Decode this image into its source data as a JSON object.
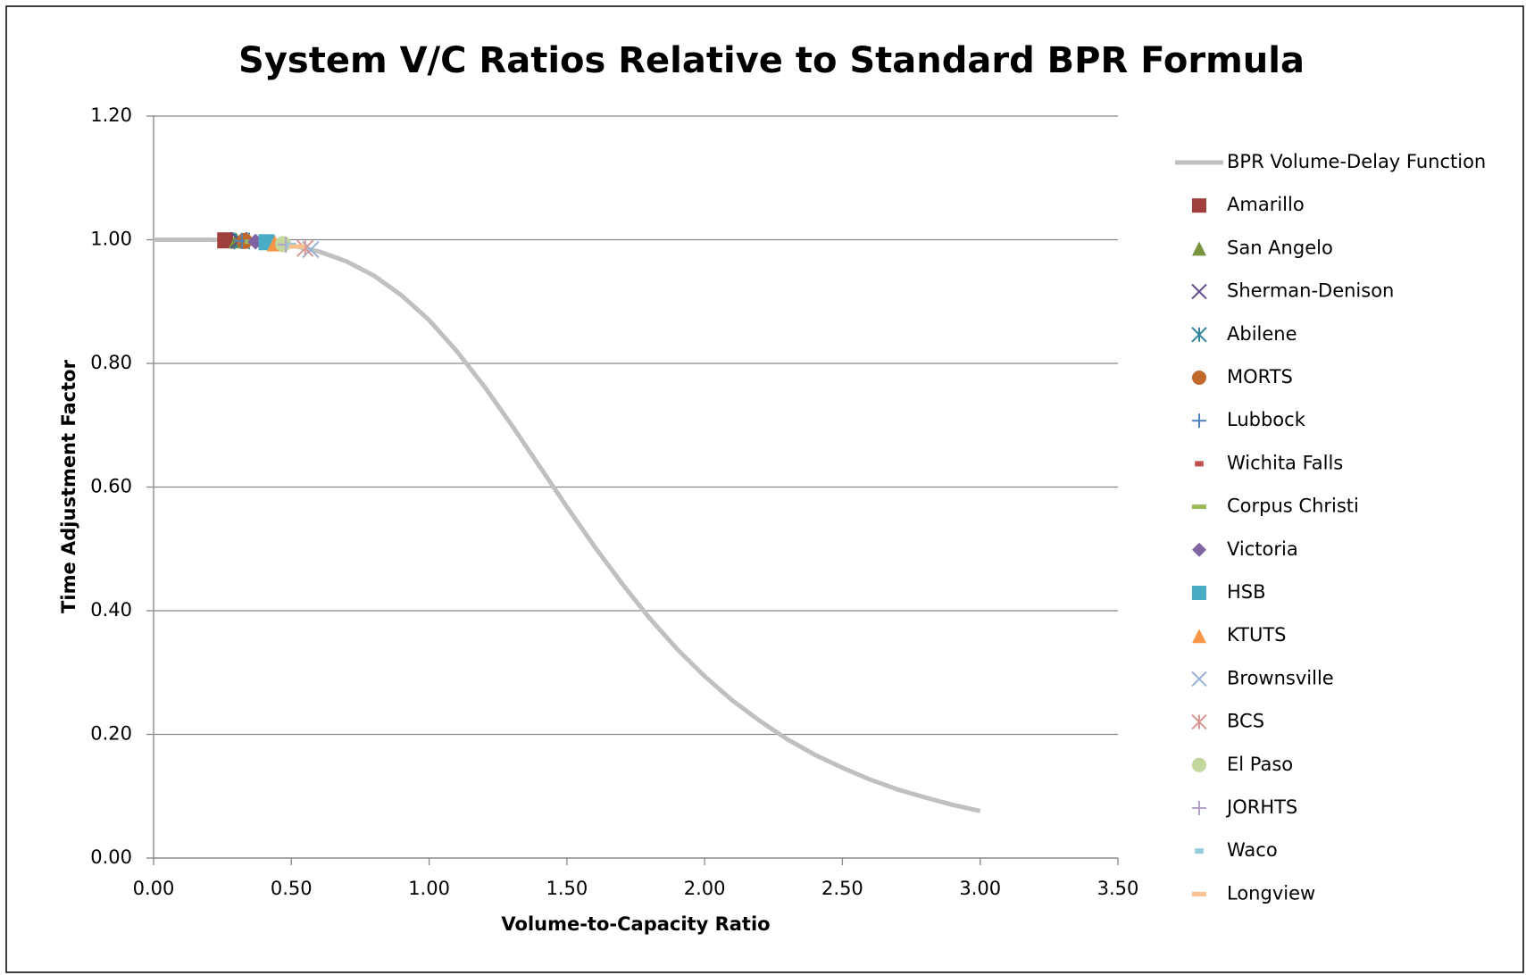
{
  "chart_data": {
    "type": "scatter",
    "title": "System V/C Ratios Relative to Standard BPR Formula",
    "xlabel": "Volume-to-Capacity Ratio",
    "ylabel": "Time Adjustment Factor",
    "xlim": [
      0,
      3.5
    ],
    "ylim": [
      0,
      1.2
    ],
    "xticks": [
      {
        "value": 0,
        "label": "0.00"
      },
      {
        "value": 0.5,
        "label": "0.50"
      },
      {
        "value": 1,
        "label": "1.00"
      },
      {
        "value": 1.5,
        "label": "1.50"
      },
      {
        "value": 2,
        "label": "2.00"
      },
      {
        "value": 2.5,
        "label": "2.50"
      },
      {
        "value": 3,
        "label": "3.00"
      },
      {
        "value": 3.5,
        "label": "3.50"
      }
    ],
    "yticks": [
      {
        "value": 0,
        "label": "0.00"
      },
      {
        "value": 0.2,
        "label": "0.20"
      },
      {
        "value": 0.4,
        "label": "0.40"
      },
      {
        "value": 0.6,
        "label": "0.60"
      },
      {
        "value": 0.8,
        "label": "0.80"
      },
      {
        "value": 1,
        "label": "1.00"
      },
      {
        "value": 1.2,
        "label": "1.20"
      }
    ],
    "grid": true,
    "legend": "right",
    "series": [
      {
        "name": "BPR Volume-Delay Function",
        "color": "#c0c0c0",
        "marker": "line",
        "x": [
          0,
          0.1,
          0.2,
          0.3,
          0.4,
          0.5,
          0.6,
          0.7,
          0.8,
          0.9,
          1.0,
          1.1,
          1.2,
          1.3,
          1.4,
          1.5,
          1.6,
          1.7,
          1.8,
          1.9,
          2.0,
          2.1,
          2.2,
          2.3,
          2.4,
          2.5,
          2.6,
          2.7,
          2.8,
          2.9,
          3.0
        ],
        "values": [
          1,
          1,
          1,
          0.999,
          0.996,
          0.991,
          0.981,
          0.965,
          0.942,
          0.91,
          0.87,
          0.82,
          0.763,
          0.7,
          0.634,
          0.568,
          0.504,
          0.444,
          0.388,
          0.338,
          0.294,
          0.255,
          0.222,
          0.192,
          0.167,
          0.146,
          0.127,
          0.111,
          0.098,
          0.086,
          0.076
        ]
      },
      {
        "name": "Amarillo",
        "color": "#a0403d",
        "marker": "square",
        "x": [
          0.26
        ],
        "values": [
          0.999
        ]
      },
      {
        "name": "San Angelo",
        "color": "#77933c",
        "marker": "triangle",
        "x": [
          0.3
        ],
        "values": [
          0.999
        ]
      },
      {
        "name": "Sherman-Denison",
        "color": "#5f4b8b",
        "marker": "x",
        "x": [
          0.31
        ],
        "values": [
          0.999
        ]
      },
      {
        "name": "Abilene",
        "color": "#31849b",
        "marker": "asterisk",
        "x": [
          0.32
        ],
        "values": [
          0.998
        ]
      },
      {
        "name": "MORTS",
        "color": "#c0692a",
        "marker": "circle",
        "x": [
          0.33
        ],
        "values": [
          0.998
        ]
      },
      {
        "name": "Lubbock",
        "color": "#4f81bd",
        "marker": "plus",
        "x": [
          0.32
        ],
        "values": [
          0.998
        ]
      },
      {
        "name": "Wichita Falls",
        "color": "#c0504d",
        "marker": "dash",
        "x": [
          0.35
        ],
        "values": [
          0.998
        ]
      },
      {
        "name": "Corpus Christi",
        "color": "#9bbb59",
        "marker": "longdash",
        "x": [
          0.36
        ],
        "values": [
          0.997
        ]
      },
      {
        "name": "Victoria",
        "color": "#8064a2",
        "marker": "diamond",
        "x": [
          0.37
        ],
        "values": [
          0.997
        ]
      },
      {
        "name": "HSB",
        "color": "#4bacc6",
        "marker": "square",
        "x": [
          0.41
        ],
        "values": [
          0.996
        ]
      },
      {
        "name": "KTUTS",
        "color": "#f79646",
        "marker": "triangle",
        "x": [
          0.44
        ],
        "values": [
          0.994
        ]
      },
      {
        "name": "Brownsville",
        "color": "#95b3d7",
        "marker": "x",
        "x": [
          0.57
        ],
        "values": [
          0.984
        ]
      },
      {
        "name": "BCS",
        "color": "#d99694",
        "marker": "asterisk",
        "x": [
          0.55
        ],
        "values": [
          0.986
        ]
      },
      {
        "name": "El Paso",
        "color": "#c3d69b",
        "marker": "circle",
        "x": [
          0.47
        ],
        "values": [
          0.993
        ]
      },
      {
        "name": "JORHTS",
        "color": "#b3a2c7",
        "marker": "plus",
        "x": [
          0.48
        ],
        "values": [
          0.992
        ]
      },
      {
        "name": "Waco",
        "color": "#93cddd",
        "marker": "dash",
        "x": [
          0.5
        ],
        "values": [
          0.991
        ]
      },
      {
        "name": "Longview",
        "color": "#fac090",
        "marker": "longdash",
        "x": [
          0.52
        ],
        "values": [
          0.989
        ]
      }
    ]
  }
}
